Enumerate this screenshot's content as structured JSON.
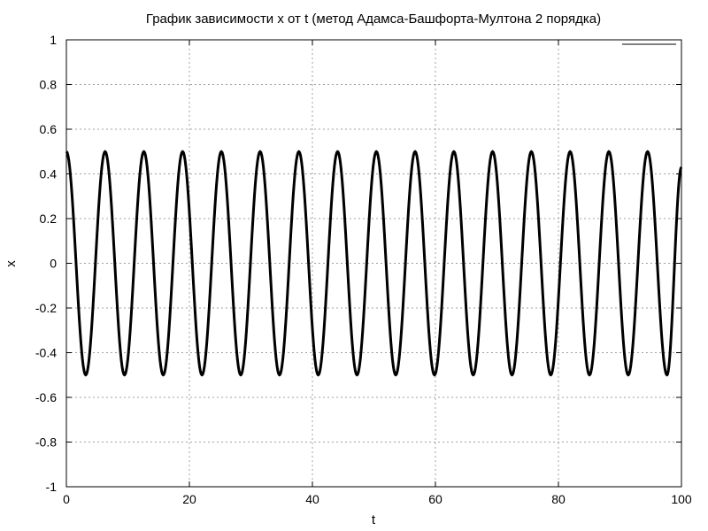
{
  "chart_data": {
    "type": "line",
    "title": "График зависимости x от t (метод Адамса-Башфорта-Мултона 2 порядка)",
    "xlabel": "t",
    "ylabel": "x",
    "xlim": [
      0,
      100
    ],
    "ylim": [
      -1,
      1
    ],
    "x_ticks": [
      0,
      20,
      40,
      60,
      80,
      100
    ],
    "y_ticks": [
      -1,
      -0.8,
      -0.6,
      -0.4,
      -0.2,
      0,
      0.2,
      0.4,
      0.6,
      0.8,
      1
    ],
    "x_tick_labels": [
      "0",
      "20",
      "40",
      "60",
      "80",
      "100"
    ],
    "y_tick_labels": [
      "-1",
      "-0.8",
      "-0.6",
      "-0.4",
      "-0.2",
      "0",
      "0.2",
      "0.4",
      "0.6",
      "0.8",
      "1"
    ],
    "grid": true,
    "legend": {
      "placement": "top-right",
      "entries": [
        {
          "name": ""
        }
      ]
    },
    "colors": {
      "series": "#000000",
      "grid": "#a0a0a0",
      "axis": "#000000"
    },
    "series": [
      {
        "name": "",
        "x": [
          0,
          3.15,
          6.3,
          9.45,
          12.6,
          15.75,
          18.9,
          22.05,
          25.2,
          28.35,
          31.5,
          34.65,
          37.8,
          40.95,
          44.1,
          47.25,
          50.4,
          53.55,
          56.7,
          59.85,
          63.0,
          66.15,
          69.3,
          72.45,
          75.6,
          78.75,
          81.9,
          85.05,
          88.2,
          91.35,
          94.5,
          97.65,
          100
        ],
        "y": [
          0.5,
          -0.5,
          0.5,
          -0.5,
          0.5,
          -0.5,
          0.5,
          -0.5,
          0.5,
          -0.5,
          0.5,
          -0.5,
          0.5,
          -0.5,
          0.5,
          -0.5,
          0.5,
          -0.5,
          0.5,
          -0.5,
          0.5,
          -0.5,
          0.5,
          -0.5,
          0.5,
          -0.5,
          0.5,
          -0.5,
          0.5,
          -0.5,
          0.5,
          -0.5,
          0.43
        ]
      }
    ]
  }
}
